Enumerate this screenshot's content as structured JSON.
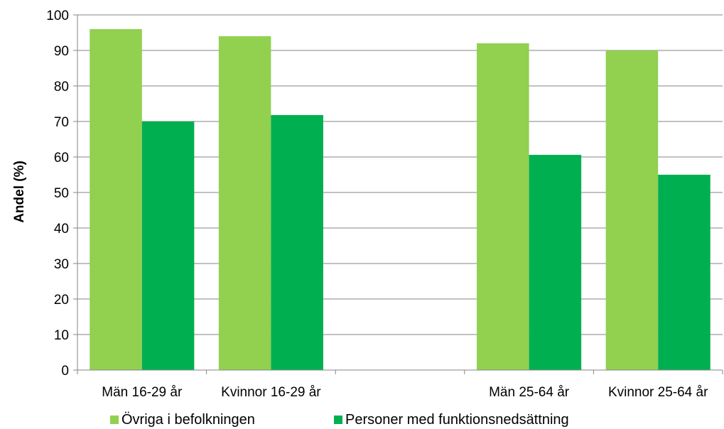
{
  "chart_data": {
    "type": "bar",
    "categories": [
      "Män 16-29 år",
      "Kvinnor 16-29 år",
      "",
      "Män 25-64 år",
      "Kvinnor 25-64 år"
    ],
    "series": [
      {
        "name": "Övriga i befolkningen",
        "values": [
          96,
          94,
          null,
          92,
          90
        ],
        "color": "#92d050"
      },
      {
        "name": "Personer med funktionsnedsättning",
        "values": [
          70,
          71.8,
          null,
          60.6,
          55
        ],
        "color": "#00b050"
      }
    ],
    "ylabel": "Andel (%)",
    "xlabel": "",
    "ylim": [
      0,
      100
    ],
    "yticks": [
      "0",
      "10",
      "20",
      "30",
      "40",
      "50",
      "60",
      "70",
      "80",
      "90",
      "100"
    ],
    "grid": true,
    "legend_position": "bottom"
  }
}
